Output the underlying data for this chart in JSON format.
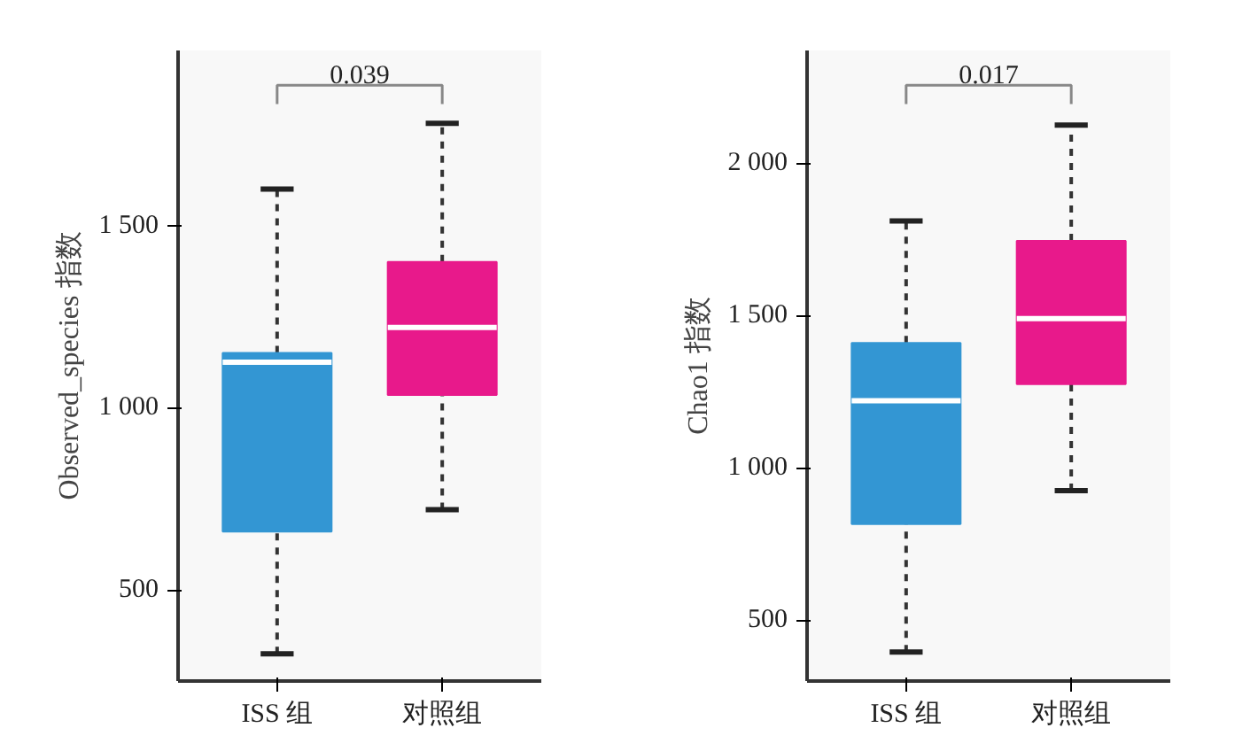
{
  "chart_data": [
    {
      "type": "box",
      "ylabel": "Observed_species 指数",
      "categories": [
        "ISS 组",
        "对照组"
      ],
      "colors": [
        "#3396d3",
        "#e8198b"
      ],
      "boxes": [
        {
          "low": 325,
          "q1": 660,
          "median": 1125,
          "q3": 1150,
          "high": 1600
        },
        {
          "low": 720,
          "q1": 1035,
          "median": 1220,
          "q3": 1400,
          "high": 1780
        }
      ],
      "ylim": [
        250,
        1980
      ],
      "yticks": [
        {
          "value": 500,
          "label": "500"
        },
        {
          "value": 1000,
          "label": "1 000"
        },
        {
          "value": 1500,
          "label": "1 500"
        }
      ],
      "annotations": [
        "0.039"
      ],
      "grid": false
    },
    {
      "type": "box",
      "ylabel": "Chao1 指数",
      "categories": [
        "ISS 组",
        "对照组"
      ],
      "colors": [
        "#3396d3",
        "#e8198b"
      ],
      "boxes": [
        {
          "low": 395,
          "q1": 815,
          "median": 1220,
          "q3": 1410,
          "high": 1810
        },
        {
          "low": 925,
          "q1": 1275,
          "median": 1490,
          "q3": 1745,
          "high": 2125
        }
      ],
      "ylim": [
        300,
        2370
      ],
      "yticks": [
        {
          "value": 500,
          "label": "500"
        },
        {
          "value": 1000,
          "label": "1 000"
        },
        {
          "value": 1500,
          "label": "1 500"
        },
        {
          "value": 2000,
          "label": "2 000"
        }
      ],
      "annotations": [
        "0.017"
      ],
      "grid": false
    }
  ]
}
